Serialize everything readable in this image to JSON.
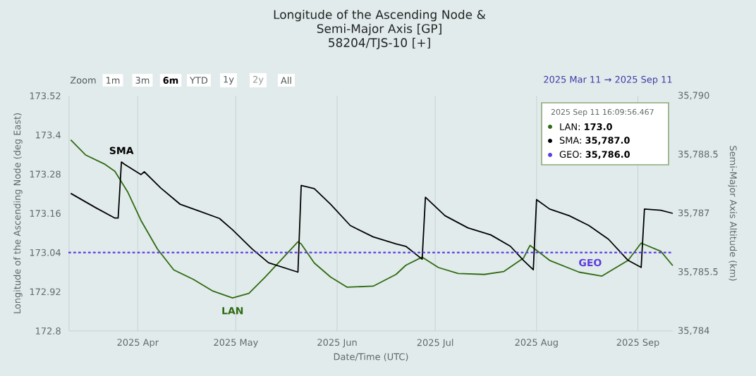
{
  "chart_data": {
    "type": "line",
    "title": "Longitude of the Ascending Node & Semi-Major Axis [GP]",
    "subtitle": "58204/TJS-10 [+]",
    "xlabel": "Date/Time (UTC)",
    "ylabel": "Longitude of the Ascending Node (deg East)",
    "y2label": "Semi-Major Axis Altitude (km)",
    "xlim": [
      "2025-03-11",
      "2025-09-11T16:09"
    ],
    "xticks": [
      {
        "value": "2025-04-01",
        "label": "2025 Apr"
      },
      {
        "value": "2025-05-01",
        "label": "2025 May"
      },
      {
        "value": "2025-06-01",
        "label": "2025 Jun"
      },
      {
        "value": "2025-07-01",
        "label": "2025 Jul"
      },
      {
        "value": "2025-08-01",
        "label": "2025 Aug"
      },
      {
        "value": "2025-09-01",
        "label": "2025 Sep"
      }
    ],
    "ylim": [
      172.8,
      173.52
    ],
    "yticks": [
      172.8,
      172.92,
      173.04,
      173.16,
      173.28,
      173.4,
      173.52
    ],
    "y2lim": [
      35784,
      35790
    ],
    "y2ticks": [
      {
        "value": 35784,
        "label": "35,784"
      },
      {
        "value": 35785.5,
        "label": "35,785.5"
      },
      {
        "value": 35787,
        "label": "35,787"
      },
      {
        "value": 35788.5,
        "label": "35,788.5"
      },
      {
        "value": 35790,
        "label": "35,790"
      }
    ],
    "grid": "x",
    "series": [
      {
        "name": "LAN",
        "color": "#2e6b12",
        "line_style": "solid",
        "x": [
          "2025-03-11T12:00",
          "2025-03-16",
          "2025-03-22",
          "2025-03-25",
          "2025-03-29",
          "2025-04-02",
          "2025-04-07",
          "2025-04-12",
          "2025-04-18",
          "2025-04-24",
          "2025-04-30",
          "2025-05-05",
          "2025-05-10",
          "2025-05-16",
          "2025-05-20",
          "2025-05-21",
          "2025-05-25",
          "2025-05-30",
          "2025-06-04",
          "2025-06-12",
          "2025-06-19",
          "2025-06-22",
          "2025-06-27",
          "2025-07-02",
          "2025-07-08",
          "2025-07-16",
          "2025-07-22",
          "2025-07-28",
          "2025-07-30",
          "2025-08-05",
          "2025-08-14",
          "2025-08-21",
          "2025-08-29",
          "2025-09-02",
          "2025-09-08",
          "2025-09-11T16:09"
        ],
        "values": [
          173.385,
          173.339,
          173.31,
          173.289,
          173.224,
          173.138,
          173.051,
          172.987,
          172.958,
          172.922,
          172.901,
          172.915,
          172.965,
          173.03,
          173.073,
          173.066,
          173.008,
          172.965,
          172.934,
          172.937,
          172.973,
          173.001,
          173.026,
          172.994,
          172.976,
          172.973,
          172.982,
          173.023,
          173.062,
          173.016,
          172.98,
          172.968,
          173.016,
          173.069,
          173.044,
          173.0
        ]
      },
      {
        "name": "SMA",
        "color": "#000000",
        "line_style": "solid",
        "axis": "y2",
        "x": [
          "2025-03-11T12:00",
          "2025-03-19",
          "2025-03-25",
          "2025-03-26",
          "2025-03-27",
          "2025-03-28",
          "2025-04-02",
          "2025-04-03",
          "2025-04-08",
          "2025-04-14",
          "2025-04-20",
          "2025-04-26",
          "2025-04-30",
          "2025-05-06",
          "2025-05-11",
          "2025-05-20",
          "2025-05-21",
          "2025-05-25",
          "2025-05-30",
          "2025-06-05",
          "2025-06-12",
          "2025-06-19",
          "2025-06-22",
          "2025-06-27",
          "2025-06-28",
          "2025-07-04",
          "2025-07-11",
          "2025-07-18",
          "2025-07-24",
          "2025-07-28",
          "2025-07-31",
          "2025-08-01",
          "2025-08-05",
          "2025-08-11",
          "2025-08-17",
          "2025-08-23",
          "2025-08-29",
          "2025-09-02",
          "2025-09-03",
          "2025-09-08",
          "2025-09-11T16:09"
        ],
        "values": [
          35787.51,
          35787.15,
          35786.88,
          35786.88,
          35788.31,
          35788.25,
          35787.99,
          35788.06,
          35787.65,
          35787.23,
          35787.05,
          35786.87,
          35786.58,
          35786.09,
          35785.74,
          35785.5,
          35787.71,
          35787.63,
          35787.23,
          35786.69,
          35786.4,
          35786.22,
          35786.16,
          35785.83,
          35787.41,
          35786.94,
          35786.63,
          35786.45,
          35786.16,
          35785.8,
          35785.56,
          35787.35,
          35787.11,
          35786.94,
          35786.69,
          35786.34,
          35785.8,
          35785.62,
          35787.11,
          35787.08,
          35787.0
        ]
      },
      {
        "name": "GEO",
        "color": "#5a3de0",
        "line_style": "dotted",
        "axis": "y2",
        "x": [
          "2025-03-11",
          "2025-09-11T16:09"
        ],
        "values": [
          35786,
          35786
        ]
      }
    ],
    "annotations": [
      "Zoom",
      "1m",
      "3m",
      "6m",
      "YTD",
      "1y",
      "2y",
      "All",
      "2025 Mar 11 → 2025 Sep 11",
      "2025 Sep 11 16:09:56.467",
      "LAN: **173.0**",
      "SMA: **35,787.0**",
      "GEO: **35,786.0**"
    ]
  }
}
